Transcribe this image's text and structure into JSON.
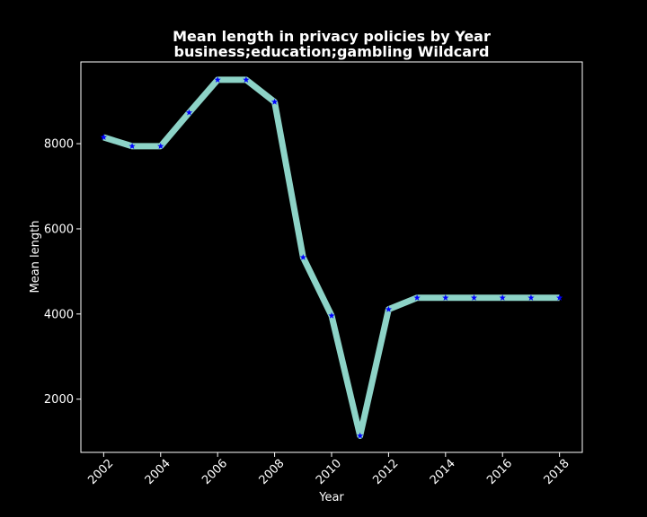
{
  "chart_data": {
    "type": "line",
    "title": "Mean length in privacy policies by Year",
    "subtitle": "business;education;gambling Wildcard",
    "xlabel": "Year",
    "ylabel": "Mean length",
    "x": [
      2002,
      2003,
      2004,
      2005,
      2006,
      2007,
      2008,
      2009,
      2010,
      2011,
      2012,
      2013,
      2014,
      2015,
      2016,
      2017,
      2018
    ],
    "values": [
      8150,
      7940,
      7940,
      8730,
      9500,
      9500,
      8980,
      5330,
      3960,
      1140,
      4110,
      4380,
      4380,
      4380,
      4380,
      4380,
      4380
    ],
    "xlim": [
      2001.2,
      2018.8
    ],
    "ylim": [
      750,
      9920
    ],
    "xticks": [
      2002,
      2004,
      2006,
      2008,
      2010,
      2012,
      2014,
      2016,
      2018
    ],
    "xtick_labels": [
      "2002",
      "2004",
      "2006",
      "2008",
      "2010",
      "2012",
      "2014",
      "2016",
      "2018"
    ],
    "yticks": [
      2000,
      4000,
      6000,
      8000
    ],
    "ytick_labels": [
      "2000",
      "4000",
      "6000",
      "8000"
    ],
    "grid": false,
    "legend": "none",
    "colors": {
      "background": "#000000",
      "line": "#8dd3c7",
      "marker": "#0000ff",
      "text": "#ffffff",
      "axes": "#ffffff"
    }
  }
}
